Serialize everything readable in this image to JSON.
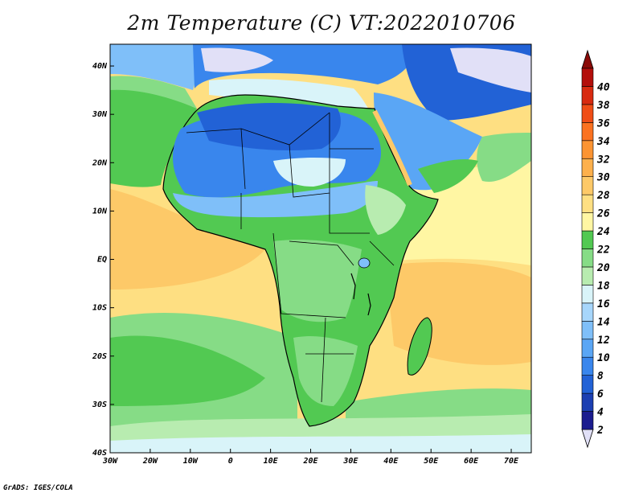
{
  "title": "2m Temperature (C) VT:2022010706",
  "credit": "GrADS: IGES/COLA",
  "map": {
    "lon_ticks": [
      "30W",
      "20W",
      "10W",
      "0",
      "10E",
      "20E",
      "30E",
      "40E",
      "50E",
      "60E",
      "70E"
    ],
    "lat_ticks": [
      "40S",
      "30S",
      "20S",
      "10S",
      "EQ",
      "10N",
      "20N",
      "30N",
      "40N"
    ],
    "ocean_color": "#fedf82",
    "land_color": "#52c952"
  },
  "colorbar": {
    "labels": [
      "2",
      "4",
      "6",
      "8",
      "10",
      "12",
      "14",
      "16",
      "18",
      "20",
      "22",
      "24",
      "26",
      "28",
      "30",
      "32",
      "34",
      "36",
      "38",
      "40"
    ],
    "colors": [
      "#1b1c8f",
      "#1c3fb2",
      "#2262d6",
      "#3986ed",
      "#5aa6f5",
      "#7fbff9",
      "#a7d6fb",
      "#d9f4f9",
      "#b8ecb0",
      "#86dc86",
      "#52c952",
      "#fff6a3",
      "#fedf82",
      "#fdc968",
      "#fdb04c",
      "#fc9432",
      "#fb7220",
      "#f04d16",
      "#d82a10",
      "#b30e0b"
    ],
    "below_color": "#e1e0f7",
    "above_color": "#8a0a07"
  }
}
